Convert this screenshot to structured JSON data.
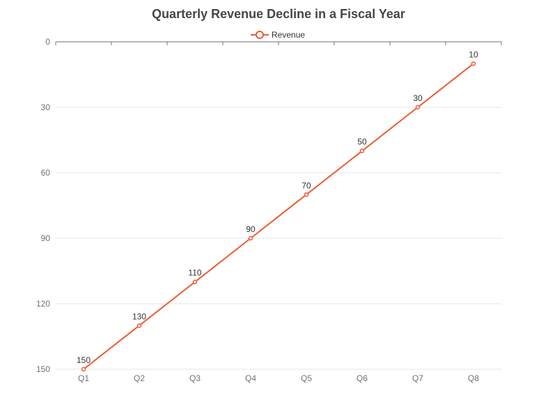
{
  "chart_data": {
    "type": "line",
    "title": "Quarterly Revenue Decline in a Fiscal Year",
    "xlabel": "",
    "ylabel": "",
    "categories": [
      "Q1",
      "Q2",
      "Q3",
      "Q4",
      "Q5",
      "Q6",
      "Q7",
      "Q8"
    ],
    "series": [
      {
        "name": "Revenue",
        "values": [
          150,
          130,
          110,
          90,
          70,
          50,
          30,
          10
        ],
        "color": "#ee5a32"
      }
    ],
    "y_axis": {
      "min": 0,
      "max": 150,
      "ticks": [
        0,
        30,
        60,
        90,
        120,
        150
      ],
      "inverse": true
    },
    "grid": true,
    "legend_position": "top-center",
    "data_labels": true
  }
}
